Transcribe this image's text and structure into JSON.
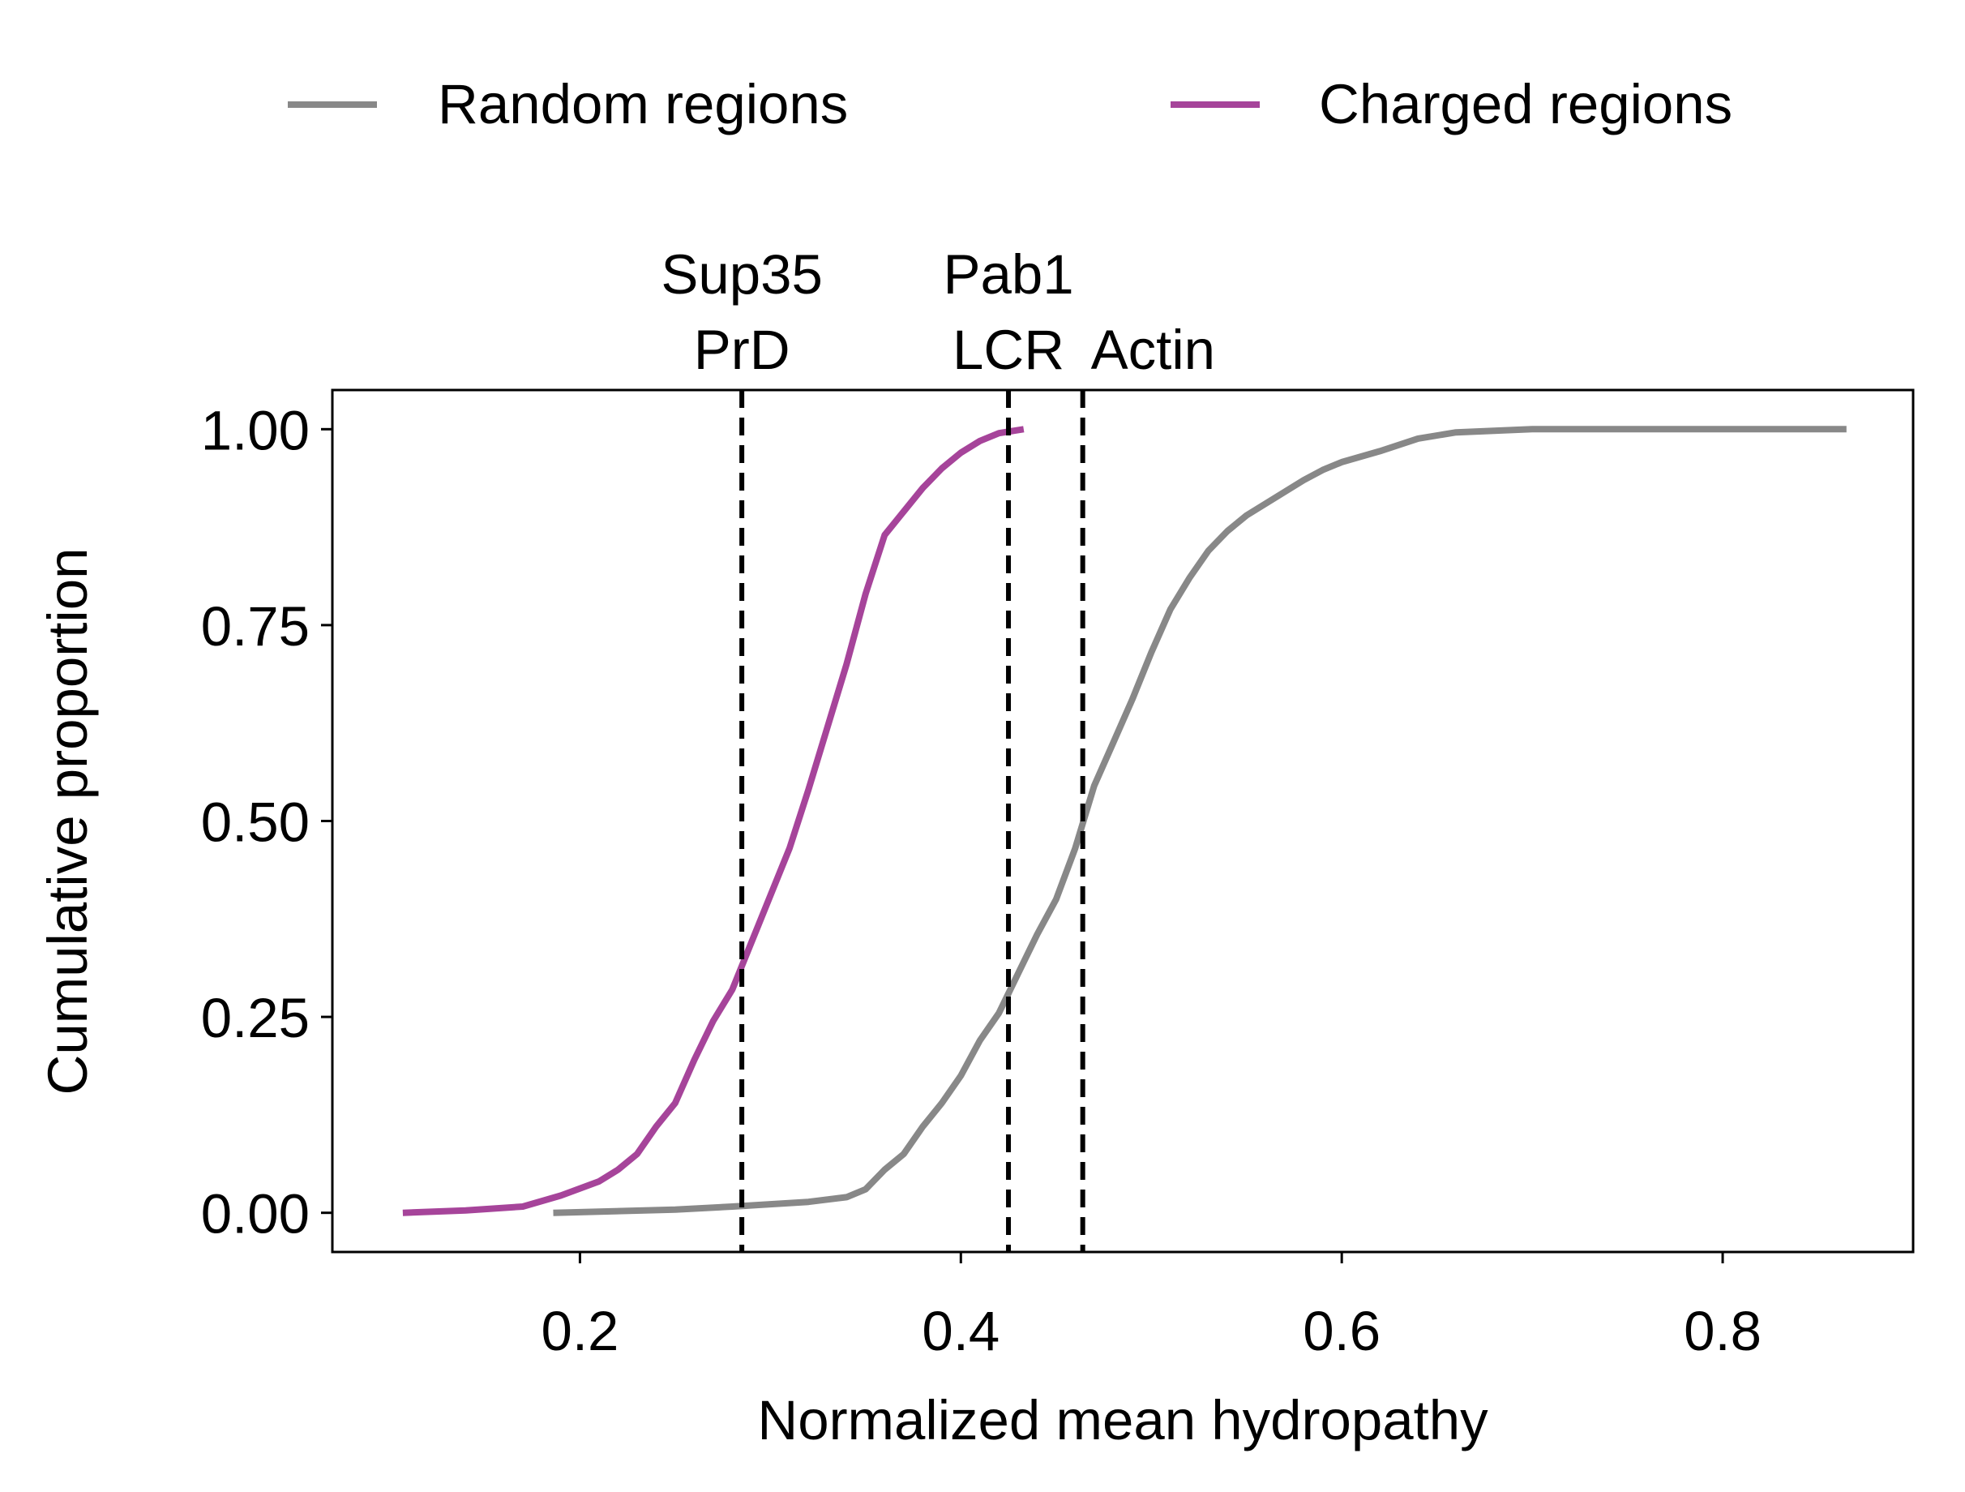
{
  "chart_data": {
    "type": "line",
    "title": "",
    "xlabel": "Normalized mean hydropathy",
    "ylabel": "Cumulative proportion",
    "xlim": [
      0.07,
      0.9
    ],
    "ylim": [
      -0.05,
      1.05
    ],
    "grid": false,
    "legend_position": "top",
    "xticks": [
      {
        "value": 0.2,
        "label": "0.2"
      },
      {
        "value": 0.4,
        "label": "0.4"
      },
      {
        "value": 0.6,
        "label": "0.6"
      },
      {
        "value": 0.8,
        "label": "0.8"
      }
    ],
    "yticks": [
      {
        "value": 0.0,
        "label": "0.00"
      },
      {
        "value": 0.25,
        "label": "0.25"
      },
      {
        "value": 0.5,
        "label": "0.50"
      },
      {
        "value": 0.75,
        "label": "0.75"
      },
      {
        "value": 1.0,
        "label": "1.00"
      }
    ],
    "series": [
      {
        "name": "Random regions",
        "color": "#888888",
        "points": [
          [
            0.186,
            0.0
          ],
          [
            0.25,
            0.004
          ],
          [
            0.28,
            0.008
          ],
          [
            0.32,
            0.014
          ],
          [
            0.34,
            0.02
          ],
          [
            0.35,
            0.03
          ],
          [
            0.36,
            0.055
          ],
          [
            0.37,
            0.075
          ],
          [
            0.38,
            0.11
          ],
          [
            0.39,
            0.14
          ],
          [
            0.4,
            0.175
          ],
          [
            0.41,
            0.22
          ],
          [
            0.42,
            0.255
          ],
          [
            0.43,
            0.305
          ],
          [
            0.44,
            0.355
          ],
          [
            0.45,
            0.4
          ],
          [
            0.46,
            0.465
          ],
          [
            0.47,
            0.545
          ],
          [
            0.48,
            0.6
          ],
          [
            0.49,
            0.655
          ],
          [
            0.5,
            0.715
          ],
          [
            0.51,
            0.77
          ],
          [
            0.52,
            0.81
          ],
          [
            0.53,
            0.845
          ],
          [
            0.54,
            0.87
          ],
          [
            0.55,
            0.89
          ],
          [
            0.56,
            0.905
          ],
          [
            0.57,
            0.92
          ],
          [
            0.58,
            0.935
          ],
          [
            0.59,
            0.948
          ],
          [
            0.6,
            0.958
          ],
          [
            0.62,
            0.972
          ],
          [
            0.64,
            0.988
          ],
          [
            0.66,
            0.996
          ],
          [
            0.7,
            1.0
          ],
          [
            0.865,
            1.0
          ]
        ]
      },
      {
        "name": "Charged regions",
        "color": "#a6449a",
        "points": [
          [
            0.107,
            0.0
          ],
          [
            0.14,
            0.003
          ],
          [
            0.17,
            0.008
          ],
          [
            0.19,
            0.022
          ],
          [
            0.21,
            0.04
          ],
          [
            0.22,
            0.055
          ],
          [
            0.23,
            0.075
          ],
          [
            0.24,
            0.11
          ],
          [
            0.25,
            0.14
          ],
          [
            0.26,
            0.195
          ],
          [
            0.27,
            0.245
          ],
          [
            0.28,
            0.285
          ],
          [
            0.29,
            0.345
          ],
          [
            0.3,
            0.405
          ],
          [
            0.31,
            0.465
          ],
          [
            0.32,
            0.54
          ],
          [
            0.33,
            0.62
          ],
          [
            0.34,
            0.7
          ],
          [
            0.35,
            0.79
          ],
          [
            0.36,
            0.865
          ],
          [
            0.37,
            0.895
          ],
          [
            0.38,
            0.925
          ],
          [
            0.39,
            0.95
          ],
          [
            0.4,
            0.97
          ],
          [
            0.41,
            0.985
          ],
          [
            0.42,
            0.995
          ],
          [
            0.433,
            1.0
          ]
        ]
      }
    ],
    "reference_lines": [
      {
        "x": 0.285,
        "label_lines": [
          "Sup35",
          "PrD"
        ]
      },
      {
        "x": 0.425,
        "label_lines": [
          "Pab1",
          "LCR"
        ]
      },
      {
        "x": 0.464,
        "label_lines": [
          "Actin"
        ]
      }
    ]
  }
}
